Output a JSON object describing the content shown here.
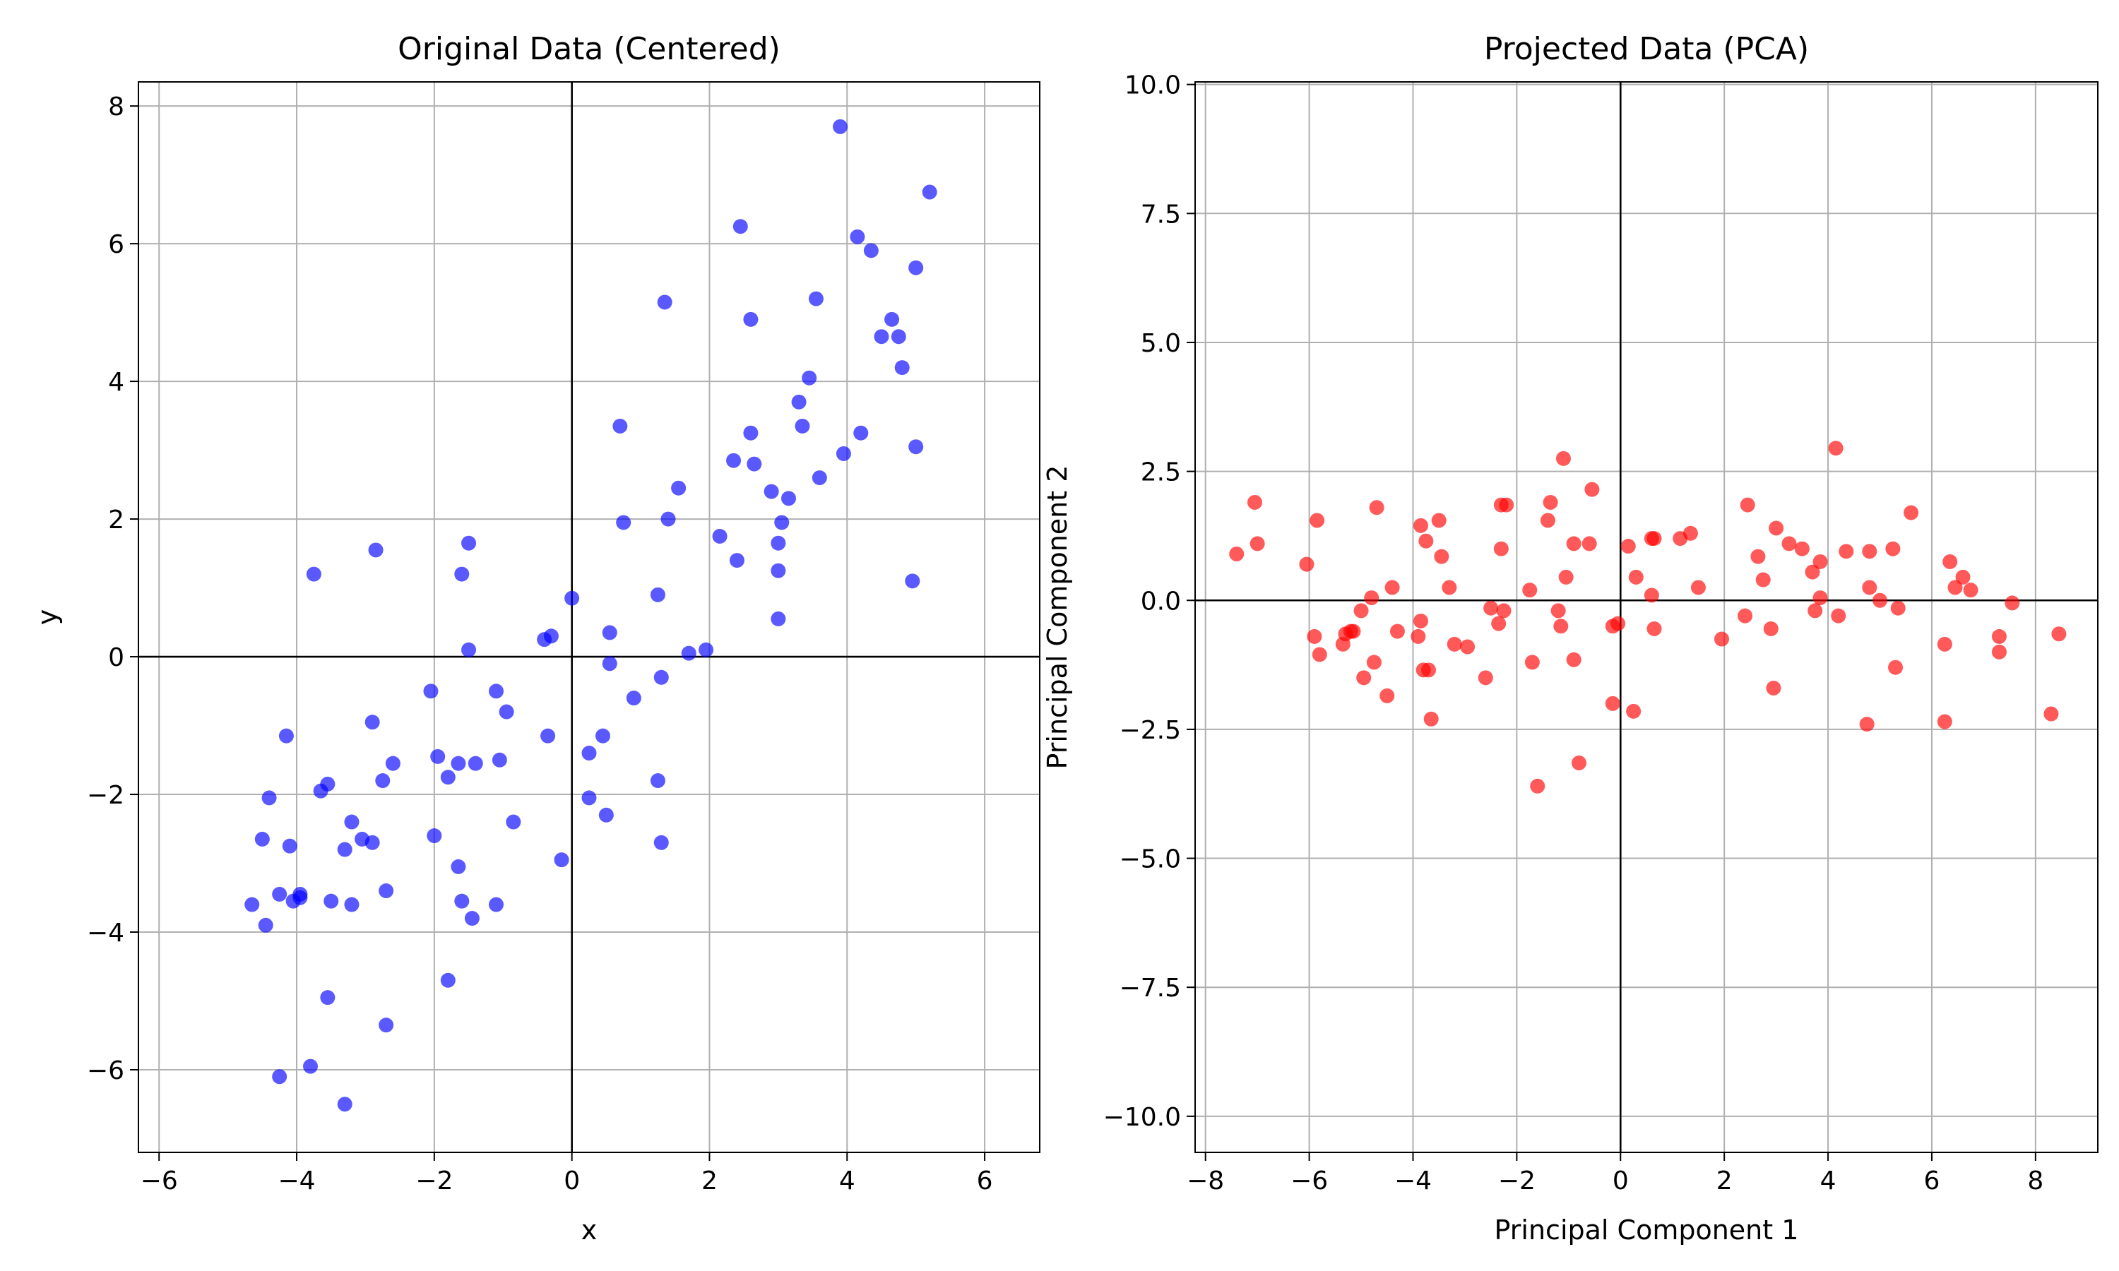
{
  "chart_data": [
    {
      "type": "scatter",
      "title": "Original Data (Centered)",
      "xlabel": "x",
      "ylabel": "y",
      "xlim": [
        -6.3,
        6.8
      ],
      "ylim": [
        -7.2,
        8.35
      ],
      "xticks": [
        -6,
        -4,
        -2,
        0,
        2,
        4,
        6
      ],
      "yticks": [
        -6,
        -4,
        -2,
        0,
        2,
        4,
        6,
        8
      ],
      "xtick_labels": [
        "−6",
        "−4",
        "−2",
        "0",
        "2",
        "4",
        "6"
      ],
      "ytick_labels": [
        "−6",
        "−4",
        "−2",
        "0",
        "2",
        "4",
        "6",
        "8"
      ],
      "grid": true,
      "zero_lines": true,
      "color": "#0000ff",
      "alpha": 0.65,
      "x": [
        -4.65,
        -4.45,
        -4.5,
        -4.4,
        -4.25,
        -4.25,
        -4.15,
        -4.1,
        -4.05,
        -3.95,
        -3.95,
        -3.8,
        -3.75,
        -3.65,
        -3.55,
        -3.55,
        -3.5,
        -3.3,
        -3.3,
        -3.2,
        -3.2,
        -3.05,
        -2.9,
        -2.9,
        -2.85,
        -2.75,
        -2.7,
        -2.7,
        -2.6,
        -2.05,
        -2.0,
        -1.95,
        -1.8,
        -1.8,
        -1.65,
        -1.65,
        -1.6,
        -1.6,
        -1.5,
        -1.5,
        -1.45,
        -1.4,
        -1.1,
        -1.1,
        -1.05,
        -0.95,
        -0.85,
        -0.4,
        -0.35,
        -0.3,
        -0.15,
        0.0,
        0.25,
        0.25,
        0.45,
        0.5,
        0.55,
        0.55,
        0.7,
        0.75,
        0.9,
        1.25,
        1.25,
        1.3,
        1.3,
        1.35,
        1.4,
        1.55,
        1.7,
        1.95,
        2.15,
        2.35,
        2.4,
        2.45,
        2.6,
        2.6,
        2.65,
        2.9,
        3.0,
        3.0,
        3.0,
        3.05,
        3.15,
        3.3,
        3.35,
        3.45,
        3.55,
        3.6,
        3.9,
        3.95,
        4.15,
        4.2,
        4.35,
        4.5,
        4.65,
        4.75,
        4.8,
        4.95,
        5.0,
        5.0,
        5.2
      ],
      "y": [
        -3.6,
        -3.9,
        -2.65,
        -2.05,
        -3.45,
        -6.1,
        -1.15,
        -2.75,
        -3.55,
        -3.5,
        -3.45,
        -5.95,
        1.2,
        -1.95,
        -4.95,
        -1.85,
        -3.55,
        -2.8,
        -6.5,
        -3.6,
        -2.4,
        -2.65,
        -2.7,
        -0.95,
        1.55,
        -1.8,
        -3.4,
        -5.35,
        -1.55,
        -0.5,
        -2.6,
        -1.45,
        -1.75,
        -4.7,
        -1.55,
        -3.05,
        1.2,
        -3.55,
        1.65,
        0.1,
        -3.8,
        -1.55,
        -3.6,
        -0.5,
        -1.5,
        -0.8,
        -2.4,
        0.25,
        -1.15,
        0.3,
        -2.95,
        0.85,
        -1.4,
        -2.05,
        -1.15,
        -2.3,
        0.35,
        -0.1,
        3.35,
        1.95,
        -0.6,
        0.9,
        -1.8,
        -2.7,
        -0.3,
        5.15,
        2.0,
        2.45,
        0.05,
        0.1,
        1.75,
        2.85,
        1.4,
        6.25,
        4.9,
        3.25,
        2.8,
        2.4,
        1.65,
        1.25,
        0.55,
        1.95,
        2.3,
        3.7,
        3.35,
        4.05,
        5.2,
        2.6,
        7.7,
        2.95,
        6.1,
        3.25,
        5.9,
        4.65,
        4.9,
        4.65,
        4.2,
        1.1,
        5.65,
        3.05,
        6.75
      ]
    },
    {
      "type": "scatter",
      "title": "Projected Data (PCA)",
      "xlabel": "Principal Component 1",
      "ylabel": "Principal Component 2",
      "xlim": [
        -8.2,
        9.2
      ],
      "ylim": [
        -10.7,
        10.05
      ],
      "xticks": [
        -8,
        -6,
        -4,
        -2,
        0,
        2,
        4,
        6,
        8
      ],
      "yticks": [
        -10,
        -7.5,
        -5,
        -2.5,
        0,
        2.5,
        5,
        7.5,
        10
      ],
      "xtick_labels": [
        "−8",
        "−6",
        "−4",
        "−2",
        "0",
        "2",
        "4",
        "6",
        "8"
      ],
      "ytick_labels": [
        "−10.0",
        "−7.5",
        "−5.0",
        "−2.5",
        "0.0",
        "2.5",
        "5.0",
        "7.5",
        "10.0"
      ],
      "grid": true,
      "zero_lines": true,
      "color": "#ff0000",
      "alpha": 0.65,
      "x": [
        -7.4,
        -7.05,
        -7.0,
        -6.05,
        -5.9,
        -5.85,
        -5.8,
        -5.35,
        -5.3,
        -5.2,
        -5.15,
        -5.0,
        -4.95,
        -4.8,
        -4.75,
        -4.7,
        -4.5,
        -4.4,
        -4.3,
        -3.9,
        -3.85,
        -3.85,
        -3.8,
        -3.75,
        -3.7,
        -3.65,
        -3.5,
        -3.45,
        -3.3,
        -3.2,
        -2.95,
        -2.6,
        -2.5,
        -2.35,
        -2.3,
        -2.3,
        -2.25,
        -2.2,
        -1.75,
        -1.7,
        -1.6,
        -1.4,
        -1.35,
        -1.2,
        -1.15,
        -1.1,
        -1.05,
        -0.9,
        -0.9,
        -0.8,
        -0.6,
        -0.55,
        -0.15,
        -0.15,
        -0.05,
        0.15,
        0.25,
        0.3,
        0.6,
        0.6,
        0.65,
        0.65,
        1.15,
        1.35,
        1.5,
        1.95,
        2.4,
        2.45,
        2.65,
        2.75,
        2.9,
        2.95,
        3.0,
        3.25,
        3.5,
        3.7,
        3.75,
        3.85,
        3.85,
        4.15,
        4.2,
        4.35,
        4.75,
        4.8,
        4.8,
        5.0,
        5.25,
        5.3,
        5.35,
        5.6,
        6.25,
        6.25,
        6.35,
        6.45,
        6.6,
        6.75,
        7.3,
        7.3,
        7.55,
        8.3,
        8.45
      ],
      "y": [
        0.9,
        1.9,
        1.1,
        0.7,
        -0.7,
        1.55,
        -1.05,
        -0.85,
        -0.65,
        -0.6,
        -0.6,
        -0.2,
        -1.5,
        0.05,
        -1.2,
        1.8,
        -1.85,
        0.25,
        -0.6,
        -0.7,
        -0.4,
        1.45,
        -1.35,
        1.15,
        -1.35,
        -2.3,
        1.55,
        0.85,
        0.25,
        -0.85,
        -0.9,
        -1.5,
        -0.15,
        -0.45,
        1.85,
        1.0,
        -0.2,
        1.85,
        0.2,
        -1.2,
        -3.6,
        1.55,
        1.9,
        -0.2,
        -0.5,
        2.75,
        0.45,
        1.1,
        -1.15,
        -3.15,
        1.1,
        2.15,
        -0.5,
        -2.0,
        -0.45,
        1.05,
        -2.15,
        0.45,
        1.2,
        0.1,
        1.2,
        -0.55,
        1.2,
        1.3,
        0.25,
        -0.75,
        -0.3,
        1.85,
        0.85,
        0.4,
        -0.55,
        -1.7,
        1.4,
        1.1,
        1.0,
        0.55,
        -0.2,
        0.05,
        0.75,
        2.95,
        -0.3,
        0.95,
        -2.4,
        0.25,
        0.95,
        0.0,
        1.0,
        -1.3,
        -0.15,
        1.7,
        -0.85,
        -2.35,
        0.75,
        0.25,
        0.45,
        0.2,
        -0.7,
        -1.0,
        -0.05,
        -2.2,
        -0.65
      ]
    }
  ]
}
